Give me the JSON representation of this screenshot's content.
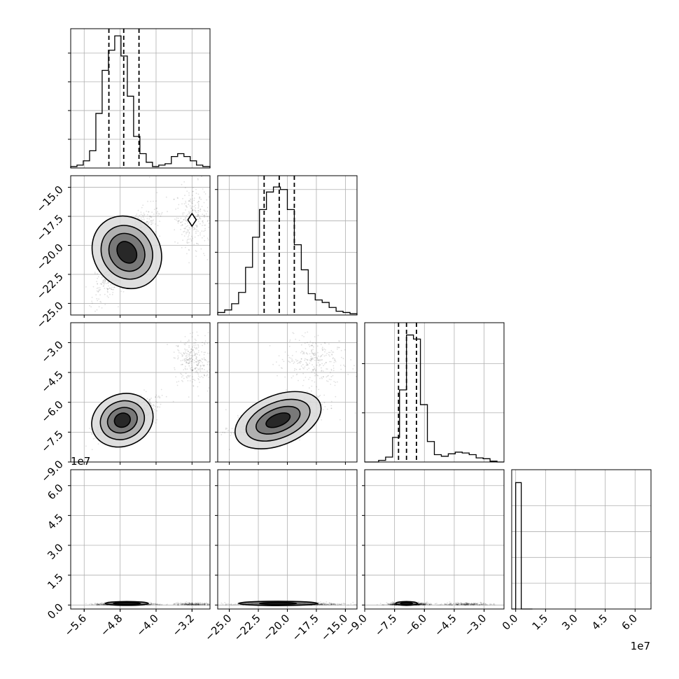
{
  "chart_data": {
    "type": "corner",
    "parameters": [
      {
        "range": [
          -5.9,
          -2.8
        ],
        "ticks": [
          -5.6,
          -4.8,
          -4.0,
          -3.2
        ],
        "tick_labels": [
          "−5.6",
          "−4.8",
          "−4.0",
          "−3.2"
        ],
        "multiplier": ""
      },
      {
        "range": [
          -26.0,
          -14.0
        ],
        "ticks": [
          -25.0,
          -22.5,
          -20.0,
          -17.5,
          -15.0
        ],
        "tick_labels": [
          "−25.0",
          "−22.5",
          "−20.0",
          "−17.5",
          "−15.0"
        ],
        "multiplier": ""
      },
      {
        "range": [
          -9.0,
          -2.0
        ],
        "ticks": [
          -9.0,
          -7.5,
          -6.0,
          -4.5,
          -3.0
        ],
        "tick_labels": [
          "−9.0",
          "−7.5",
          "−6.0",
          "−4.5",
          "−3.0"
        ],
        "multiplier": ""
      },
      {
        "range": [
          -2000000,
          68000000
        ],
        "ticks": [
          0,
          15000000,
          30000000,
          45000000,
          60000000
        ],
        "tick_labels": [
          "0.0",
          "1.5",
          "3.0",
          "4.5",
          "6.0"
        ],
        "multiplier": "1e7"
      }
    ],
    "grid": true,
    "histograms": [
      {
        "edges": [
          -5.9,
          -5.76,
          -5.62,
          -5.48,
          -5.34,
          -5.2,
          -5.06,
          -4.92,
          -4.78,
          -4.64,
          -4.5,
          -4.36,
          -4.22,
          -4.08,
          -3.94,
          -3.8,
          -3.66,
          -3.52,
          -3.38,
          -3.24,
          -3.1,
          -2.96,
          -2.8
        ],
        "counts": [
          1,
          2,
          5,
          12,
          38,
          68,
          82,
          92,
          78,
          50,
          22,
          10,
          4,
          1,
          2,
          3,
          8,
          10,
          8,
          5,
          2,
          1
        ],
        "ymax": 97,
        "quantiles": [
          -5.05,
          -4.72,
          -4.38
        ]
      },
      {
        "edges": [
          -26.0,
          -25.4,
          -24.8,
          -24.2,
          -23.6,
          -23.0,
          -22.4,
          -21.8,
          -21.2,
          -20.6,
          -20.0,
          -19.4,
          -18.8,
          -18.2,
          -17.6,
          -17.0,
          -16.4,
          -15.8,
          -15.2,
          -14.6,
          -14.0
        ],
        "counts": [
          2,
          4,
          9,
          18,
          38,
          62,
          84,
          98,
          102,
          100,
          84,
          56,
          36,
          17,
          12,
          10,
          6,
          3,
          2,
          1
        ],
        "ymax": 111,
        "quantiles": [
          -22.0,
          -20.7,
          -19.4
        ]
      },
      {
        "edges": [
          -9.0,
          -8.65,
          -8.3,
          -7.95,
          -7.6,
          -7.25,
          -6.9,
          -6.55,
          -6.2,
          -5.85,
          -5.5,
          -5.15,
          -4.8,
          -4.45,
          -4.1,
          -3.75,
          -3.4,
          -3.05,
          -2.7,
          -2.35,
          -2.0
        ],
        "counts": [
          0,
          0,
          2,
          6,
          30,
          88,
          155,
          150,
          70,
          25,
          9,
          7,
          10,
          12,
          11,
          9,
          5,
          4,
          1,
          0
        ],
        "ymax": 170,
        "quantiles": [
          -7.3,
          -6.9,
          -6.4
        ]
      },
      {
        "edges": [
          -2000000,
          0,
          2800000,
          5600000,
          8400000
        ],
        "counts": [
          0,
          98,
          0,
          0
        ],
        "ymax": 108,
        "quantiles": []
      }
    ],
    "contours_2d": [
      {
        "row": 1,
        "col": 0,
        "center": [
          -4.65,
          -20.6
        ],
        "radii": [
          [
            0.2,
            1.0
          ],
          [
            0.38,
            1.7
          ],
          [
            0.55,
            2.4
          ],
          [
            0.74,
            3.25
          ]
        ]
      },
      {
        "row": 2,
        "col": 0,
        "center": [
          -4.75,
          -6.9
        ],
        "radii": [
          [
            0.18,
            0.35
          ],
          [
            0.34,
            0.62
          ],
          [
            0.5,
            0.95
          ],
          [
            0.7,
            1.3
          ]
        ]
      },
      {
        "row": 2,
        "col": 1,
        "center": [
          -20.8,
          -6.9
        ],
        "radii": [
          [
            1.1,
            0.3
          ],
          [
            2.0,
            0.58
          ],
          [
            2.9,
            0.9
          ],
          [
            3.9,
            1.25
          ]
        ]
      },
      {
        "row": 3,
        "col": 0,
        "center": [
          -4.65,
          800000
        ],
        "radii": [
          [
            0.3,
            500000
          ],
          [
            0.48,
            1000000
          ]
        ]
      },
      {
        "row": 3,
        "col": 1,
        "center": [
          -20.8,
          800000
        ],
        "radii": [
          [
            1.6,
            500000
          ],
          [
            3.4,
            1100000
          ]
        ]
      },
      {
        "row": 3,
        "col": 2,
        "center": [
          -6.9,
          800000
        ],
        "radii": [
          [
            0.3,
            500000
          ],
          [
            0.55,
            1000000
          ]
        ]
      }
    ],
    "secondary_mode": {
      "row": 1,
      "col": 0,
      "center": [
        -3.2,
        -17.8
      ]
    }
  },
  "offset_labels": [
    "1e7",
    "1e7"
  ]
}
